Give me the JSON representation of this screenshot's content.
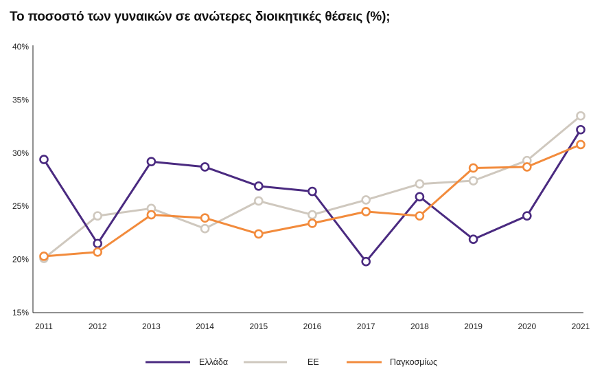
{
  "colors": {
    "greece": "#4a2a80",
    "eu": "#cfc8be",
    "global": "#f28b3c",
    "axis": "#222222"
  },
  "chart_data": {
    "type": "line",
    "title": "Το ποσοστό των γυναικών σε ανώτερες διοικητικές θέσεις (%);",
    "xlabel": "",
    "ylabel": "",
    "categories": [
      "2011",
      "2012",
      "2013",
      "2014",
      "2015",
      "2016",
      "2017",
      "2018",
      "2019",
      "2020",
      "2021"
    ],
    "ylim": [
      15,
      40
    ],
    "yticks": [
      15,
      20,
      25,
      30,
      35,
      40
    ],
    "ytick_labels": [
      "15%",
      "20%",
      "25%",
      "30%",
      "35%",
      "40%"
    ],
    "legend_position": "bottom",
    "series": [
      {
        "name": "ΕΕ",
        "color_key": "eu",
        "values": [
          20.1,
          24.1,
          24.8,
          22.9,
          25.5,
          24.2,
          25.6,
          27.1,
          27.4,
          29.3,
          33.5
        ]
      },
      {
        "name": "Ελλάδα",
        "color_key": "greece",
        "values": [
          29.4,
          21.5,
          29.2,
          28.7,
          26.9,
          26.4,
          19.8,
          25.9,
          21.9,
          24.1,
          32.2
        ]
      },
      {
        "name": "Παγκοσμίως",
        "color_key": "global",
        "values": [
          20.3,
          20.7,
          24.2,
          23.9,
          22.4,
          23.4,
          24.5,
          24.1,
          28.6,
          28.7,
          30.8
        ]
      }
    ],
    "legend_order": [
      "Ελλάδα",
      "ΕΕ",
      "Παγκοσμίως"
    ]
  }
}
